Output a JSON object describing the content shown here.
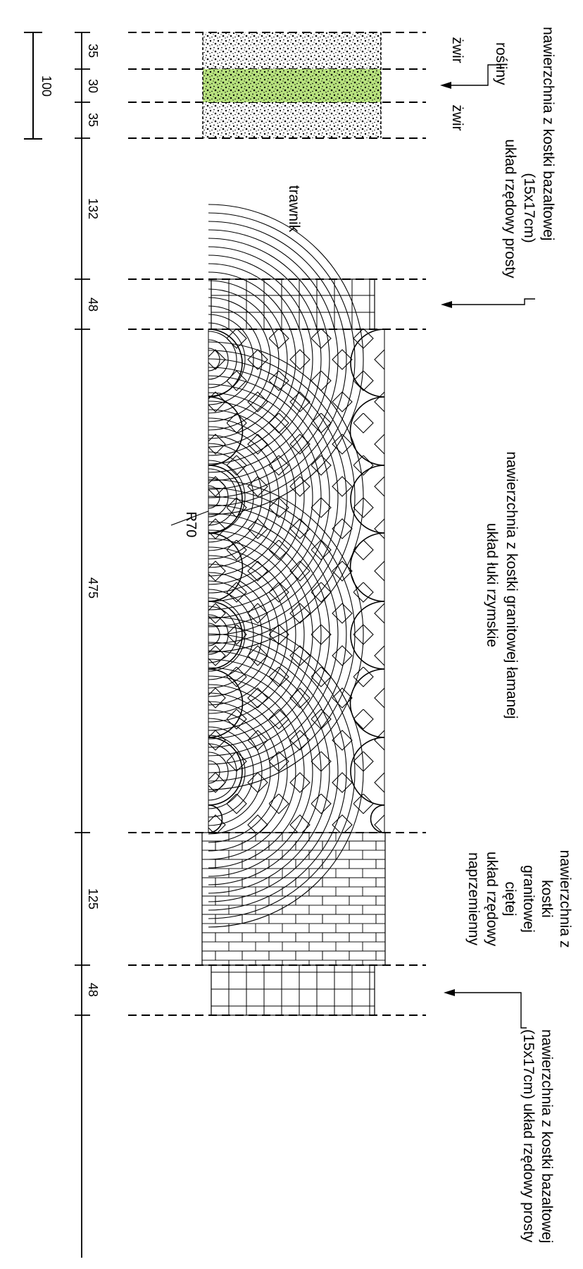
{
  "scale_bar": {
    "label": "100"
  },
  "dimensions": [
    "35",
    "30",
    "35",
    "132",
    "48",
    "475",
    "125",
    "48"
  ],
  "radius_label": "R70",
  "zones": {
    "gravel_top": {
      "label": "żwir"
    },
    "plants": {
      "label": "rośliny",
      "color": "#b8e27e"
    },
    "gravel_bottom": {
      "label": "żwir"
    },
    "lawn": {
      "label": "trawnik"
    },
    "basalt_top": {
      "lines": [
        "nawierzchnia z kostki bazaltowej",
        "(15x17cm)",
        "układ rzędowy prosty"
      ]
    },
    "roman_arcs": {
      "lines": [
        "nawierzchnia z kostki granitowej łamanej",
        "układ łuki rzymskie"
      ]
    },
    "granite_running": {
      "lines": [
        "nawierzchnia z",
        "kostki",
        "granitowej",
        "ciętej",
        "układ rzędowy",
        "naprzemienny"
      ]
    },
    "basalt_bottom": {
      "lines": [
        "nawierzchnia z kostki bazaltowej",
        "(15x17cm) układ rzędowy prosty"
      ]
    }
  }
}
